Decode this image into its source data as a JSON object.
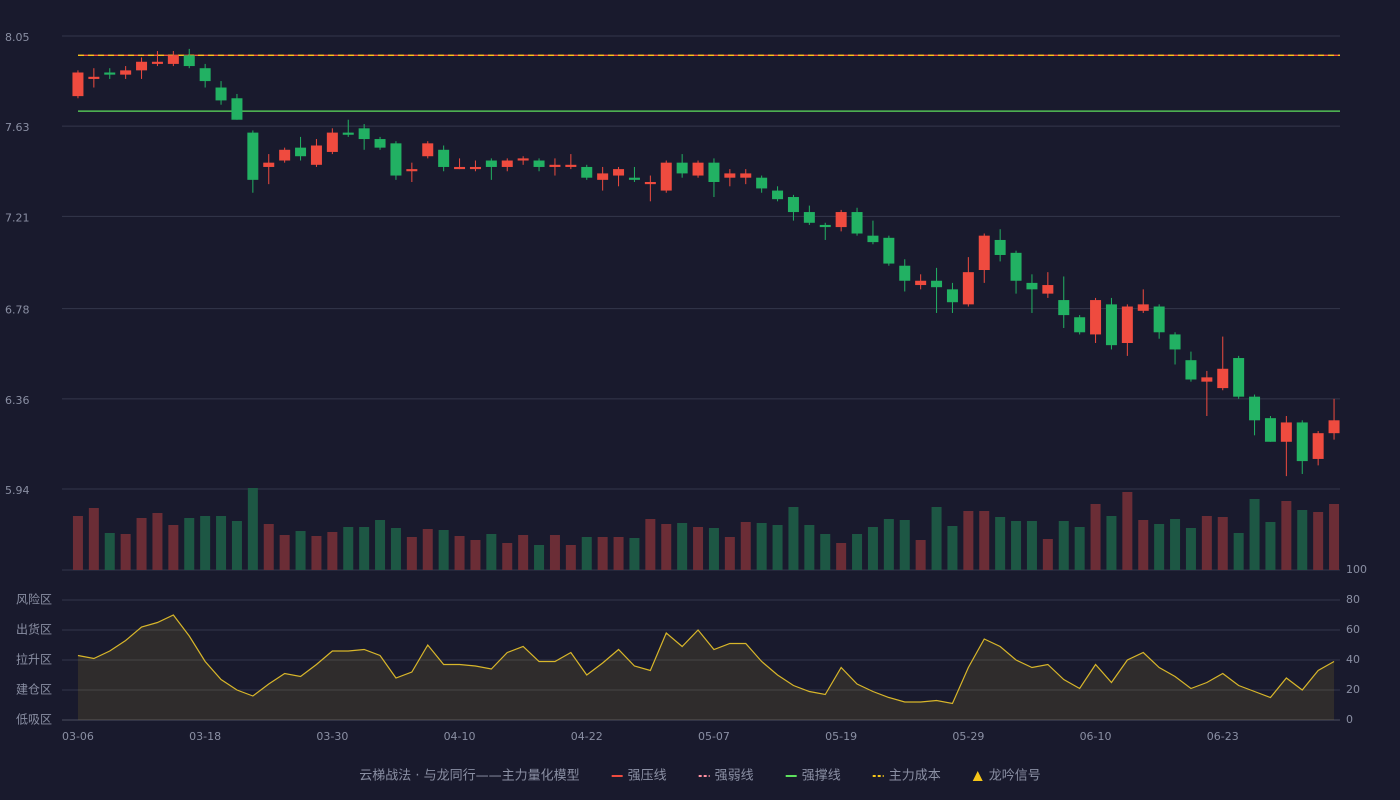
{
  "chart_data": {
    "type": "candlestick",
    "categories": [
      "03-06",
      null,
      null,
      null,
      null,
      null,
      null,
      null,
      "03-18",
      null,
      null,
      null,
      null,
      null,
      null,
      null,
      "03-30",
      null,
      null,
      null,
      null,
      null,
      null,
      null,
      "04-10",
      null,
      null,
      null,
      null,
      null,
      null,
      null,
      "04-22",
      null,
      null,
      null,
      null,
      null,
      null,
      null,
      "05-07",
      null,
      null,
      null,
      null,
      null,
      null,
      null,
      "05-19",
      null,
      null,
      null,
      null,
      null,
      null,
      null,
      "05-29",
      null,
      null,
      null,
      null,
      null,
      null,
      null,
      "06-10",
      null,
      null,
      null,
      null,
      null,
      null,
      null,
      "06-23",
      null,
      null,
      null,
      null,
      null,
      null,
      null
    ],
    "open": [
      7.77,
      7.85,
      7.88,
      7.87,
      7.89,
      7.92,
      7.92,
      7.96,
      7.9,
      7.81,
      7.76,
      7.6,
      7.44,
      7.47,
      7.53,
      7.45,
      7.51,
      7.6,
      7.62,
      7.57,
      7.55,
      7.42,
      7.49,
      7.52,
      7.43,
      7.43,
      7.47,
      7.44,
      7.47,
      7.47,
      7.44,
      7.44,
      7.44,
      7.38,
      7.4,
      7.39,
      7.36,
      7.33,
      7.46,
      7.4,
      7.46,
      7.39,
      7.39,
      7.39,
      7.33,
      7.3,
      7.23,
      7.17,
      7.16,
      7.23,
      7.12,
      7.11,
      6.98,
      6.89,
      6.91,
      6.87,
      6.8,
      6.96,
      7.1,
      7.04,
      6.9,
      6.85,
      6.82,
      6.74,
      6.66,
      6.8,
      6.62,
      6.77,
      6.79,
      6.66,
      6.54,
      6.44,
      6.41,
      6.55,
      6.37,
      6.27,
      6.16,
      6.25,
      6.08,
      6.2
    ],
    "high": [
      7.89,
      7.9,
      7.9,
      7.91,
      7.95,
      7.98,
      7.98,
      7.99,
      7.92,
      7.84,
      7.78,
      7.61,
      7.5,
      7.53,
      7.58,
      7.57,
      7.62,
      7.66,
      7.64,
      7.58,
      7.56,
      7.46,
      7.56,
      7.54,
      7.48,
      7.47,
      7.48,
      7.48,
      7.49,
      7.48,
      7.48,
      7.5,
      7.45,
      7.44,
      7.44,
      7.44,
      7.4,
      7.47,
      7.5,
      7.47,
      7.48,
      7.43,
      7.43,
      7.4,
      7.35,
      7.31,
      7.26,
      7.18,
      7.24,
      7.25,
      7.19,
      7.12,
      7.01,
      6.94,
      6.97,
      6.9,
      7.02,
      7.13,
      7.15,
      7.05,
      6.94,
      6.95,
      6.93,
      6.75,
      6.83,
      6.83,
      6.8,
      6.87,
      6.8,
      6.67,
      6.58,
      6.49,
      6.65,
      6.56,
      6.38,
      6.28,
      6.28,
      6.26,
      6.21,
      6.36
    ],
    "low": [
      7.76,
      7.81,
      7.85,
      7.85,
      7.85,
      7.91,
      7.91,
      7.9,
      7.81,
      7.73,
      7.66,
      7.32,
      7.36,
      7.46,
      7.47,
      7.44,
      7.5,
      7.58,
      7.52,
      7.52,
      7.38,
      7.37,
      7.48,
      7.42,
      7.43,
      7.42,
      7.38,
      7.42,
      7.45,
      7.42,
      7.4,
      7.43,
      7.38,
      7.33,
      7.35,
      7.37,
      7.28,
      7.32,
      7.39,
      7.39,
      7.3,
      7.35,
      7.36,
      7.32,
      7.28,
      7.19,
      7.17,
      7.1,
      7.14,
      7.12,
      7.08,
      6.98,
      6.86,
      6.87,
      6.76,
      6.76,
      6.79,
      6.9,
      7.0,
      6.85,
      6.76,
      6.83,
      6.69,
      6.66,
      6.62,
      6.59,
      6.56,
      6.76,
      6.64,
      6.52,
      6.44,
      6.28,
      6.4,
      6.36,
      6.19,
      6.16,
      6.0,
      6.01,
      6.05,
      6.17
    ],
    "close": [
      7.88,
      7.86,
      7.87,
      7.89,
      7.93,
      7.93,
      7.96,
      7.91,
      7.84,
      7.75,
      7.66,
      7.38,
      7.46,
      7.52,
      7.49,
      7.54,
      7.6,
      7.59,
      7.57,
      7.53,
      7.4,
      7.43,
      7.55,
      7.44,
      7.44,
      7.44,
      7.44,
      7.47,
      7.48,
      7.44,
      7.45,
      7.45,
      7.39,
      7.41,
      7.43,
      7.38,
      7.37,
      7.46,
      7.41,
      7.46,
      7.37,
      7.41,
      7.41,
      7.34,
      7.29,
      7.23,
      7.18,
      7.16,
      7.23,
      7.13,
      7.09,
      6.99,
      6.91,
      6.91,
      6.88,
      6.81,
      6.95,
      7.12,
      7.03,
      6.91,
      6.87,
      6.89,
      6.75,
      6.67,
      6.82,
      6.61,
      6.79,
      6.8,
      6.67,
      6.59,
      6.45,
      6.46,
      6.5,
      6.37,
      6.26,
      6.16,
      6.25,
      6.07,
      6.2,
      6.26
    ],
    "up_color": "#ef4b3f",
    "down_color": "#22b163",
    "ylim": [
      5.94,
      8.05
    ],
    "yticks": [
      8.05,
      7.63,
      7.21,
      6.78,
      6.36,
      5.94
    ],
    "grid": true,
    "volumes": [
      54,
      62,
      37,
      36,
      52,
      57,
      45,
      52,
      54,
      54,
      49,
      82,
      46,
      35,
      39,
      34,
      38,
      43,
      43,
      50,
      42,
      33,
      41,
      40,
      34,
      30,
      36,
      27,
      35,
      25,
      35,
      25,
      33,
      33,
      33,
      32,
      51,
      46,
      47,
      43,
      42,
      33,
      48,
      47,
      45,
      63,
      45,
      36,
      27,
      36,
      43,
      51,
      50,
      30,
      63,
      44,
      59,
      59,
      53,
      49,
      49,
      31,
      49,
      43,
      66,
      54,
      78,
      50,
      46,
      51,
      42,
      54,
      53,
      37,
      71,
      48,
      69,
      60,
      58,
      66
    ],
    "volume_up_color": "#6b2d36",
    "volume_down_color": "#1d5744",
    "oscillator": {
      "values": [
        43,
        41,
        46,
        53,
        62,
        65,
        70,
        56,
        39,
        27,
        20,
        16,
        24,
        31,
        29,
        37,
        46,
        46,
        47,
        43,
        28,
        32,
        50,
        37,
        37,
        36,
        34,
        45,
        49,
        39,
        39,
        45,
        30,
        38,
        47,
        36,
        33,
        58,
        49,
        60,
        47,
        51,
        51,
        39,
        30,
        23,
        19,
        17,
        35,
        24,
        19,
        15,
        12,
        12,
        13,
        11,
        35,
        54,
        49,
        40,
        35,
        37,
        27,
        21,
        37,
        25,
        40,
        45,
        35,
        29,
        21,
        25,
        31,
        23,
        19,
        15,
        28,
        20,
        33,
        39
      ],
      "color": "#d8b62a",
      "fill": "rgba(216,182,42,0.12)",
      "ylim": [
        0,
        100
      ],
      "yticks": [
        0,
        20,
        40,
        60,
        80,
        100
      ],
      "ytick_colors": [
        "#ef4b3f",
        "#ef4b3f",
        "#4a8ff0",
        "#e040e0",
        "#f0a030",
        "#3ee05a"
      ],
      "zones": [
        {
          "value": 80,
          "label": "风险区",
          "color": "#f0a030"
        },
        {
          "value": 60,
          "label": "出货区",
          "color": "#e040e0"
        },
        {
          "value": 40,
          "label": "拉升区",
          "color": "#4a8ff0"
        },
        {
          "value": 20,
          "label": "建仓区",
          "color": "#ef4b3f"
        },
        {
          "value": 0,
          "label": "低吸区",
          "color": "#ef4b3f"
        }
      ]
    },
    "legend": {
      "title": "云梯战法 · 与龙同行——主力量化模型",
      "title_color": "#e0c070",
      "items": [
        {
          "name": "强压线",
          "color": "#ef4b3f",
          "style": "solid",
          "value": 7.96
        },
        {
          "name": "强弱线",
          "color": "#ff8fa0",
          "style": "dashed"
        },
        {
          "name": "强撑线",
          "color": "#5de05d",
          "style": "solid",
          "value": 7.7
        },
        {
          "name": "主力成本",
          "color": "#f5c518",
          "style": "dashed",
          "value": 7.96
        },
        {
          "name": "龙吟信号",
          "color": "#f5c518",
          "style": "triangle"
        }
      ]
    }
  }
}
